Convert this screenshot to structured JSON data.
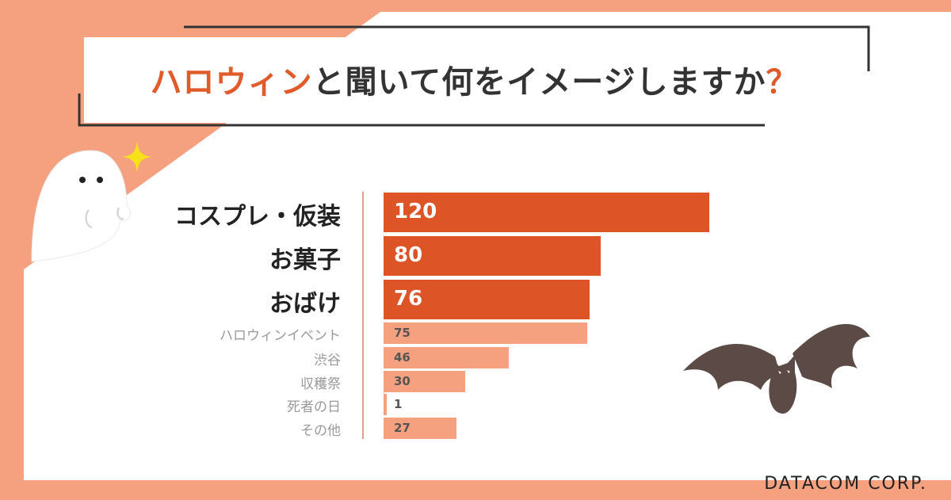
{
  "page": {
    "title_accent": "ハロウィン",
    "title_main": "と聞いて何をイメージしますか",
    "title_q": "？",
    "brand": "DATACOM CORP.",
    "colors": {
      "background": "#f5a07f",
      "major_bar": "#dd5527",
      "minor_bar": "#f5a07f",
      "accent": "#e05a2a"
    },
    "icons": [
      "ghost-icon",
      "sparkle-icon",
      "bat-icon"
    ]
  },
  "chart_data": {
    "type": "bar",
    "orientation": "horizontal",
    "title": "ハロウィンと聞いて何をイメージしますか？",
    "categories": [
      "コスプレ・仮装",
      "お菓子",
      "おばけ",
      "ハロウィンイベント",
      "渋谷",
      "収穫祭",
      "死者の日",
      "その他"
    ],
    "values": [
      120,
      80,
      76,
      75,
      46,
      30,
      1,
      27
    ],
    "value_labels": [
      "120",
      "80",
      "76",
      "75",
      "46",
      "30",
      "1",
      "27"
    ],
    "highlight_top": 3,
    "xlim": [
      0,
      120
    ],
    "grid": false,
    "legend": "none"
  }
}
